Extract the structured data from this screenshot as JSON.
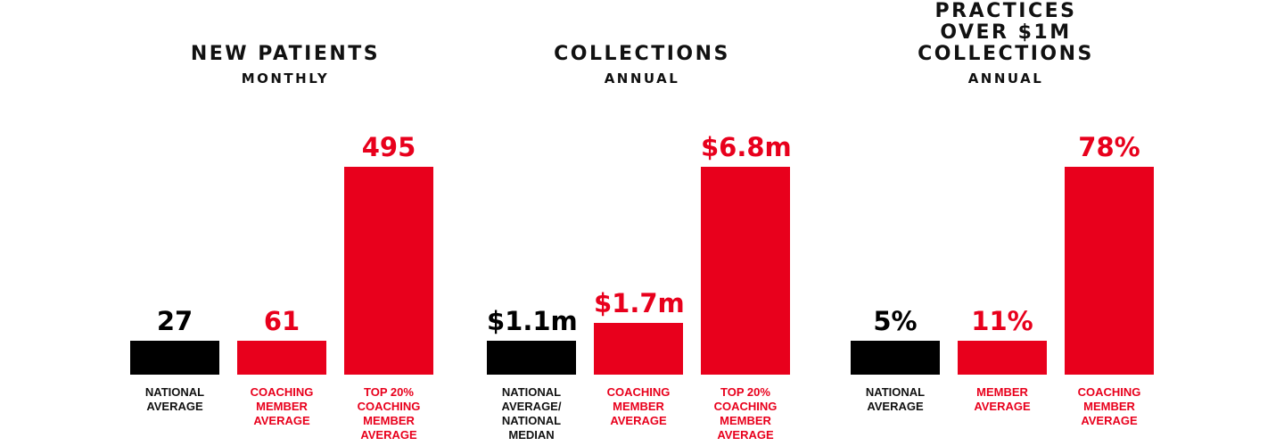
{
  "colors": {
    "highlight": "#e8001c",
    "baseline": "#000000"
  },
  "chart_data": [
    {
      "type": "bar",
      "title": "NEW PATIENTS",
      "subtitle": "MONTHLY",
      "ylim": [
        0,
        495
      ],
      "categories": [
        "NATIONAL\nAVERAGE",
        "COACHING\nMEMBER\nAVERAGE",
        "TOP 20%\nCOACHING\nMEMBER\nAVERAGE"
      ],
      "values": [
        27,
        61,
        495
      ],
      "value_labels": [
        "27",
        "61",
        "495"
      ],
      "bar_colors": [
        "#000000",
        "#e8001c",
        "#e8001c"
      ]
    },
    {
      "type": "bar",
      "title": "COLLECTIONS",
      "subtitle": "ANNUAL",
      "unit": "$m",
      "ylim": [
        0,
        6.8
      ],
      "categories": [
        "NATIONAL\nAVERAGE/\nNATIONAL\nMEDIAN",
        "COACHING\nMEMBER\nAVERAGE",
        "TOP 20%\nCOACHING\nMEMBER\nAVERAGE"
      ],
      "values": [
        1.1,
        1.7,
        6.8
      ],
      "value_labels": [
        "$1.1m",
        "$1.7m",
        "$6.8m"
      ],
      "bar_colors": [
        "#000000",
        "#e8001c",
        "#e8001c"
      ]
    },
    {
      "type": "bar",
      "title": "PRACTICES\nOVER $1M\nCOLLECTIONS",
      "subtitle": "ANNUAL",
      "unit": "%",
      "ylim": [
        0,
        78
      ],
      "categories": [
        "NATIONAL\nAVERAGE",
        "MEMBER\nAVERAGE",
        "COACHING\nMEMBER\nAVERAGE"
      ],
      "values": [
        5,
        11,
        78
      ],
      "value_labels": [
        "5%",
        "11%",
        "78%"
      ],
      "bar_colors": [
        "#000000",
        "#e8001c",
        "#e8001c"
      ]
    }
  ]
}
